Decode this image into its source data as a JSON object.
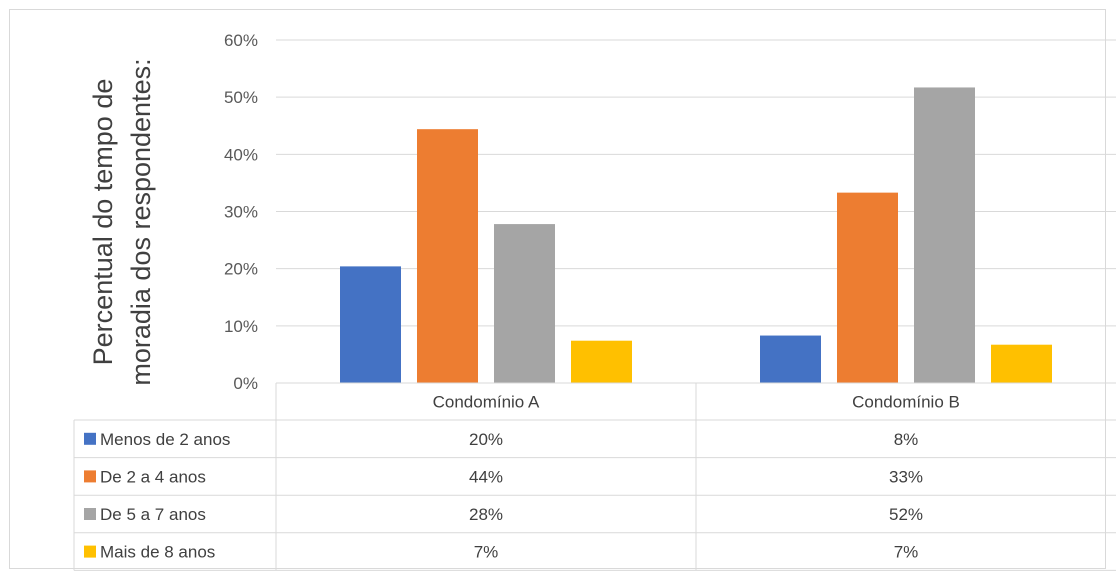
{
  "chart_data": {
    "type": "bar",
    "title": "",
    "ylabel_lines": [
      "Percentual do tempo de",
      "moradia dos respondentes:"
    ],
    "xlabel": "",
    "ylim": [
      0,
      60
    ],
    "yticks": [
      "0%",
      "10%",
      "20%",
      "30%",
      "40%",
      "50%",
      "60%"
    ],
    "categories": [
      "Condomínio A",
      "Condomínio B"
    ],
    "series": [
      {
        "name": "Menos de 2 anos",
        "color": "#4472c4",
        "values": [
          20.4,
          8.3
        ],
        "labels": [
          "20%",
          "8%"
        ]
      },
      {
        "name": "De 2 a 4 anos",
        "color": "#ed7d31",
        "values": [
          44.4,
          33.3
        ],
        "labels": [
          "44%",
          "33%"
        ]
      },
      {
        "name": "De 5 a 7 anos",
        "color": "#a5a5a5",
        "values": [
          27.8,
          51.7
        ],
        "labels": [
          "28%",
          "52%"
        ]
      },
      {
        "name": "Mais de 8 anos",
        "color": "#ffc000",
        "values": [
          7.4,
          6.7
        ],
        "labels": [
          "7%",
          "7%"
        ]
      }
    ],
    "grid": true,
    "legend": "data table"
  }
}
